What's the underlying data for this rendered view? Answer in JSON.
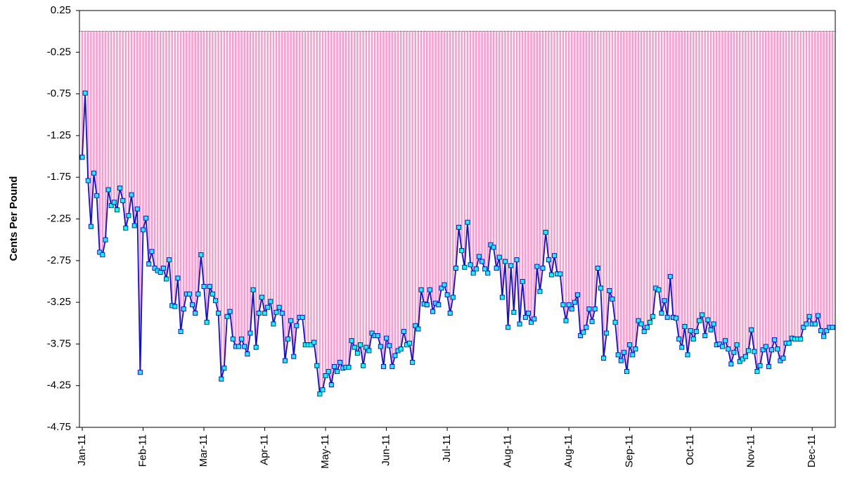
{
  "chart_data": {
    "type": "bar",
    "y_label": "Cents Per Pound",
    "ylim": [
      -4.75,
      0.25
    ],
    "yticks": [
      0.25,
      -0.25,
      -0.75,
      -1.25,
      -1.75,
      -2.25,
      -2.75,
      -3.25,
      -3.75,
      -4.25,
      -4.75
    ],
    "bar_color": "#ff99cc",
    "line_color": "#1010d0",
    "marker_color": "#00ffff",
    "categories": [
      "Jan-11",
      null,
      null,
      null,
      null,
      null,
      null,
      null,
      null,
      null,
      null,
      null,
      null,
      null,
      null,
      null,
      null,
      null,
      null,
      null,
      null,
      "Feb-11",
      null,
      null,
      null,
      null,
      null,
      null,
      null,
      null,
      null,
      null,
      null,
      null,
      null,
      null,
      null,
      null,
      null,
      null,
      null,
      null,
      "Mar-11",
      null,
      null,
      null,
      null,
      null,
      null,
      null,
      null,
      null,
      null,
      null,
      null,
      null,
      null,
      null,
      null,
      null,
      null,
      null,
      null,
      "Apr-11",
      null,
      null,
      null,
      null,
      null,
      null,
      null,
      null,
      null,
      null,
      null,
      null,
      null,
      null,
      null,
      null,
      null,
      null,
      null,
      null,
      "May-11",
      null,
      null,
      null,
      null,
      null,
      null,
      null,
      null,
      null,
      null,
      null,
      null,
      null,
      null,
      null,
      null,
      null,
      null,
      null,
      null,
      "Jun-11",
      null,
      null,
      null,
      null,
      null,
      null,
      null,
      null,
      null,
      null,
      null,
      null,
      null,
      null,
      null,
      null,
      null,
      null,
      null,
      null,
      "Jul-11",
      null,
      null,
      null,
      null,
      null,
      null,
      null,
      null,
      null,
      null,
      null,
      null,
      null,
      null,
      null,
      null,
      null,
      null,
      null,
      null,
      "Aug-11",
      null,
      null,
      null,
      null,
      null,
      null,
      null,
      null,
      null,
      null,
      null,
      null,
      null,
      null,
      null,
      null,
      null,
      null,
      null,
      null,
      "Aug-11",
      null,
      null,
      null,
      null,
      null,
      null,
      null,
      null,
      null,
      null,
      null,
      null,
      null,
      null,
      null,
      null,
      null,
      null,
      null,
      null,
      "Sep-11",
      null,
      null,
      null,
      null,
      null,
      null,
      null,
      null,
      null,
      null,
      null,
      null,
      null,
      null,
      null,
      null,
      null,
      null,
      null,
      null,
      "Oct-11",
      null,
      null,
      null,
      null,
      null,
      null,
      null,
      null,
      null,
      null,
      null,
      null,
      null,
      null,
      null,
      null,
      null,
      null,
      null,
      null,
      "Nov-11",
      null,
      null,
      null,
      null,
      null,
      null,
      null,
      null,
      null,
      null,
      null,
      null,
      null,
      null,
      null,
      null,
      null,
      null,
      null,
      null,
      "Dec-11",
      null,
      null,
      null,
      null,
      null,
      null,
      null
    ],
    "values": [
      -1.51,
      -0.74,
      -1.79,
      -2.34,
      -1.7,
      -1.97,
      -2.65,
      -2.68,
      -2.5,
      -1.9,
      -2.09,
      -2.05,
      -2.14,
      -1.88,
      -2.03,
      -2.36,
      -2.21,
      -1.96,
      -2.33,
      -2.13,
      -4.09,
      -2.38,
      -2.24,
      -2.79,
      -2.64,
      -2.84,
      -2.87,
      -2.89,
      -2.84,
      -2.97,
      -2.74,
      -3.29,
      -3.3,
      -2.96,
      -3.6,
      -3.33,
      -3.15,
      -3.15,
      -3.28,
      -3.38,
      -3.15,
      -2.68,
      -3.06,
      -3.49,
      -3.06,
      -3.15,
      -3.23,
      -3.38,
      -4.17,
      -4.04,
      -3.42,
      -3.36,
      -3.69,
      -3.78,
      -3.78,
      -3.69,
      -3.78,
      -3.87,
      -3.62,
      -3.1,
      -3.79,
      -3.38,
      -3.19,
      -3.38,
      -3.31,
      -3.24,
      -3.51,
      -3.37,
      -3.31,
      -3.38,
      -3.95,
      -3.69,
      -3.47,
      -3.9,
      -3.53,
      -3.43,
      -3.43,
      -3.76,
      -3.76,
      -3.76,
      -3.73,
      -4.01,
      -4.35,
      -4.3,
      -4.13,
      -4.08,
      -4.24,
      -4.02,
      -4.08,
      -3.97,
      -4.04,
      -4.03,
      -4.03,
      -3.71,
      -3.79,
      -3.86,
      -3.76,
      -4.01,
      -3.79,
      -3.83,
      -3.62,
      -3.65,
      -3.65,
      -3.78,
      -4.02,
      -3.68,
      -3.77,
      -4.02,
      -3.89,
      -3.83,
      -3.81,
      -3.6,
      -3.76,
      -3.74,
      -3.97,
      -3.53,
      -3.57,
      -3.1,
      -3.27,
      -3.28,
      -3.1,
      -3.36,
      -3.26,
      -3.28,
      -3.08,
      -3.04,
      -3.16,
      -3.38,
      -3.19,
      -2.84,
      -2.35,
      -2.63,
      -2.83,
      -2.29,
      -2.8,
      -2.9,
      -2.85,
      -2.7,
      -2.76,
      -2.85,
      -2.9,
      -2.56,
      -2.59,
      -2.84,
      -2.71,
      -3.19,
      -2.76,
      -3.55,
      -2.81,
      -3.37,
      -2.74,
      -3.51,
      -3.0,
      -3.43,
      -3.38,
      -3.49,
      -3.45,
      -2.82,
      -3.12,
      -2.84,
      -2.41,
      -2.74,
      -2.92,
      -2.69,
      -2.91,
      -2.91,
      -3.28,
      -3.47,
      -3.28,
      -3.33,
      -3.25,
      -3.16,
      -3.65,
      -3.61,
      -3.55,
      -3.33,
      -3.48,
      -3.33,
      -2.84,
      -3.08,
      -3.92,
      -3.62,
      -3.11,
      -3.21,
      -3.49,
      -3.88,
      -3.95,
      -3.85,
      -4.08,
      -3.76,
      -3.88,
      -3.81,
      -3.47,
      -3.51,
      -3.6,
      -3.55,
      -3.49,
      -3.42,
      -3.08,
      -3.1,
      -3.38,
      -3.23,
      -3.43,
      -2.94,
      -3.43,
      -3.44,
      -3.69,
      -3.79,
      -3.54,
      -3.88,
      -3.59,
      -3.69,
      -3.6,
      -3.47,
      -3.4,
      -3.65,
      -3.46,
      -3.58,
      -3.51,
      -3.76,
      -3.75,
      -3.78,
      -3.71,
      -3.81,
      -3.99,
      -3.85,
      -3.76,
      -3.96,
      -3.93,
      -3.9,
      -3.83,
      -3.58,
      -3.84,
      -4.08,
      -4.01,
      -3.82,
      -3.78,
      -4.02,
      -3.82,
      -3.7,
      -3.81,
      -3.95,
      -3.92,
      -3.74,
      -3.74,
      -3.68,
      -3.69,
      -3.69,
      -3.69,
      -3.55,
      -3.51,
      -3.42,
      -3.51,
      -3.51,
      -3.41,
      -3.59,
      -3.66,
      -3.59,
      -3.55,
      -3.55
    ]
  }
}
